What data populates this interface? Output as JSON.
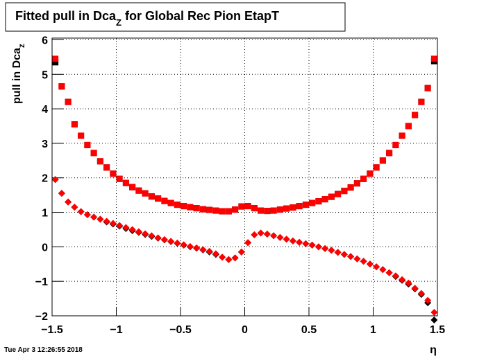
{
  "chart_data": {
    "type": "scatter",
    "title": [
      "Fitted pull in Dca",
      "Z",
      " for Global Rec Pion EtapT"
    ],
    "y_label": [
      "pull in Dca",
      "z"
    ],
    "x_label": "η",
    "timestamp": "Tue Apr  3 12:26:55 2018",
    "xlim": [
      -1.5,
      1.5
    ],
    "ylim": [
      -2,
      6.05
    ],
    "xticks": [
      {
        "value": -1.5,
        "label": "−1.5"
      },
      {
        "value": -1,
        "label": "−1"
      },
      {
        "value": -0.5,
        "label": "−0.5"
      },
      0,
      0.5,
      1,
      1.5
    ],
    "yticks": [
      {
        "value": -2,
        "label": "−2"
      },
      {
        "value": -1,
        "label": "−1"
      },
      0,
      1,
      2,
      3,
      4,
      5,
      6
    ],
    "grid": true,
    "x": [
      -1.475,
      -1.425,
      -1.375,
      -1.325,
      -1.275,
      -1.225,
      -1.175,
      -1.125,
      -1.075,
      -1.025,
      -0.975,
      -0.925,
      -0.875,
      -0.825,
      -0.775,
      -0.725,
      -0.675,
      -0.625,
      -0.575,
      -0.525,
      -0.475,
      -0.425,
      -0.375,
      -0.325,
      -0.275,
      -0.225,
      -0.175,
      -0.125,
      -0.075,
      -0.025,
      0.025,
      0.075,
      0.125,
      0.175,
      0.225,
      0.275,
      0.325,
      0.375,
      0.425,
      0.475,
      0.525,
      0.575,
      0.625,
      0.675,
      0.725,
      0.775,
      0.825,
      0.875,
      0.925,
      0.975,
      1.025,
      1.075,
      1.125,
      1.175,
      1.225,
      1.275,
      1.325,
      1.375,
      1.425,
      1.475
    ],
    "series": [
      {
        "color": "#000000",
        "marker": "square",
        "values": [
          5.35,
          4.65,
          4.2,
          3.55,
          3.22,
          2.95,
          2.72,
          2.48,
          2.3,
          2.12,
          1.97,
          1.85,
          1.73,
          1.63,
          1.55,
          1.46,
          1.4,
          1.33,
          1.27,
          1.22,
          1.18,
          1.15,
          1.12,
          1.09,
          1.07,
          1.05,
          1.03,
          1.03,
          1.08,
          1.17,
          1.18,
          1.12,
          1.05,
          1.04,
          1.05,
          1.08,
          1.11,
          1.14,
          1.18,
          1.22,
          1.27,
          1.32,
          1.38,
          1.45,
          1.53,
          1.62,
          1.72,
          1.84,
          1.97,
          2.12,
          2.3,
          2.5,
          2.72,
          2.95,
          3.22,
          3.5,
          3.82,
          4.2,
          4.6,
          5.38
        ]
      },
      {
        "color": "#ff0000",
        "marker": "square",
        "values": [
          5.45,
          4.65,
          4.2,
          3.55,
          3.22,
          2.95,
          2.72,
          2.48,
          2.3,
          2.12,
          1.97,
          1.85,
          1.73,
          1.63,
          1.55,
          1.46,
          1.4,
          1.33,
          1.27,
          1.22,
          1.18,
          1.15,
          1.12,
          1.09,
          1.07,
          1.05,
          1.03,
          1.03,
          1.08,
          1.17,
          1.18,
          1.12,
          1.05,
          1.04,
          1.05,
          1.08,
          1.11,
          1.14,
          1.18,
          1.22,
          1.27,
          1.32,
          1.38,
          1.45,
          1.53,
          1.62,
          1.72,
          1.84,
          1.97,
          2.12,
          2.3,
          2.5,
          2.72,
          2.95,
          3.22,
          3.5,
          3.82,
          4.2,
          4.6,
          5.45
        ]
      },
      {
        "color": "#000000",
        "marker": "diamond",
        "values": [
          1.95,
          1.55,
          1.3,
          1.15,
          1.02,
          0.93,
          0.86,
          0.8,
          0.72,
          0.66,
          0.6,
          0.53,
          0.47,
          0.42,
          0.36,
          0.3,
          0.25,
          0.2,
          0.15,
          0.1,
          0.05,
          0.0,
          -0.04,
          -0.09,
          -0.15,
          -0.22,
          -0.3,
          -0.37,
          -0.32,
          -0.15,
          0.12,
          0.35,
          0.4,
          0.37,
          0.32,
          0.27,
          0.22,
          0.17,
          0.13,
          0.09,
          0.05,
          0.0,
          -0.05,
          -0.1,
          -0.16,
          -0.22,
          -0.28,
          -0.35,
          -0.42,
          -0.5,
          -0.58,
          -0.66,
          -0.75,
          -0.86,
          -0.97,
          -1.08,
          -1.22,
          -1.38,
          -1.62,
          -2.12
        ]
      },
      {
        "color": "#ff0000",
        "marker": "diamond",
        "values": [
          1.95,
          1.55,
          1.3,
          1.15,
          1.02,
          0.93,
          0.86,
          0.8,
          0.74,
          0.68,
          0.62,
          0.56,
          0.5,
          0.44,
          0.38,
          0.32,
          0.26,
          0.21,
          0.16,
          0.11,
          0.06,
          0.01,
          -0.03,
          -0.08,
          -0.13,
          -0.2,
          -0.3,
          -0.37,
          -0.32,
          -0.15,
          0.12,
          0.35,
          0.4,
          0.37,
          0.32,
          0.27,
          0.22,
          0.17,
          0.13,
          0.09,
          0.05,
          0.0,
          -0.05,
          -0.1,
          -0.16,
          -0.22,
          -0.28,
          -0.35,
          -0.42,
          -0.5,
          -0.58,
          -0.66,
          -0.75,
          -0.84,
          -0.95,
          -1.05,
          -1.2,
          -1.35,
          -1.55,
          -1.9
        ]
      }
    ]
  }
}
